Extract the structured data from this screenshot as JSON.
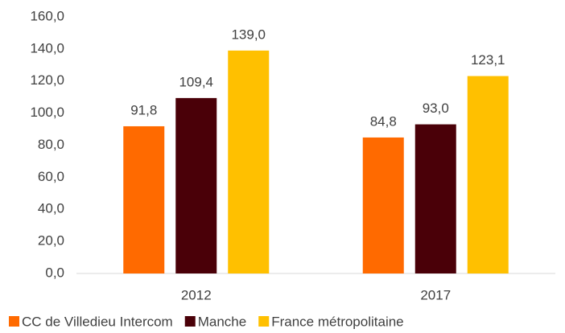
{
  "chart_data": {
    "type": "bar",
    "categories": [
      "2012",
      "2017"
    ],
    "series": [
      {
        "name": "CC de Villedieu Intercom",
        "color": "#ff6a00",
        "values": [
          91.8,
          84.8
        ],
        "value_labels": [
          "91,8",
          "84,8"
        ]
      },
      {
        "name": "Manche",
        "color": "#4a0008",
        "values": [
          109.4,
          93.0
        ],
        "value_labels": [
          "109,4",
          "93,0"
        ]
      },
      {
        "name": "France métropolitaine",
        "color": "#ffc000",
        "values": [
          139.0,
          123.1
        ],
        "value_labels": [
          "139,0",
          "123,1"
        ]
      }
    ],
    "ylim": [
      0,
      160
    ],
    "yticks": [
      {
        "value": 0,
        "label": "0,0"
      },
      {
        "value": 20,
        "label": "20,0"
      },
      {
        "value": 40,
        "label": "40,0"
      },
      {
        "value": 60,
        "label": "60,0"
      },
      {
        "value": 80,
        "label": "80,0"
      },
      {
        "value": 100,
        "label": "100,0"
      },
      {
        "value": 120,
        "label": "120,0"
      },
      {
        "value": 140,
        "label": "140,0"
      },
      {
        "value": 160,
        "label": "160,0"
      }
    ],
    "grid": false,
    "legend": "bottom"
  }
}
